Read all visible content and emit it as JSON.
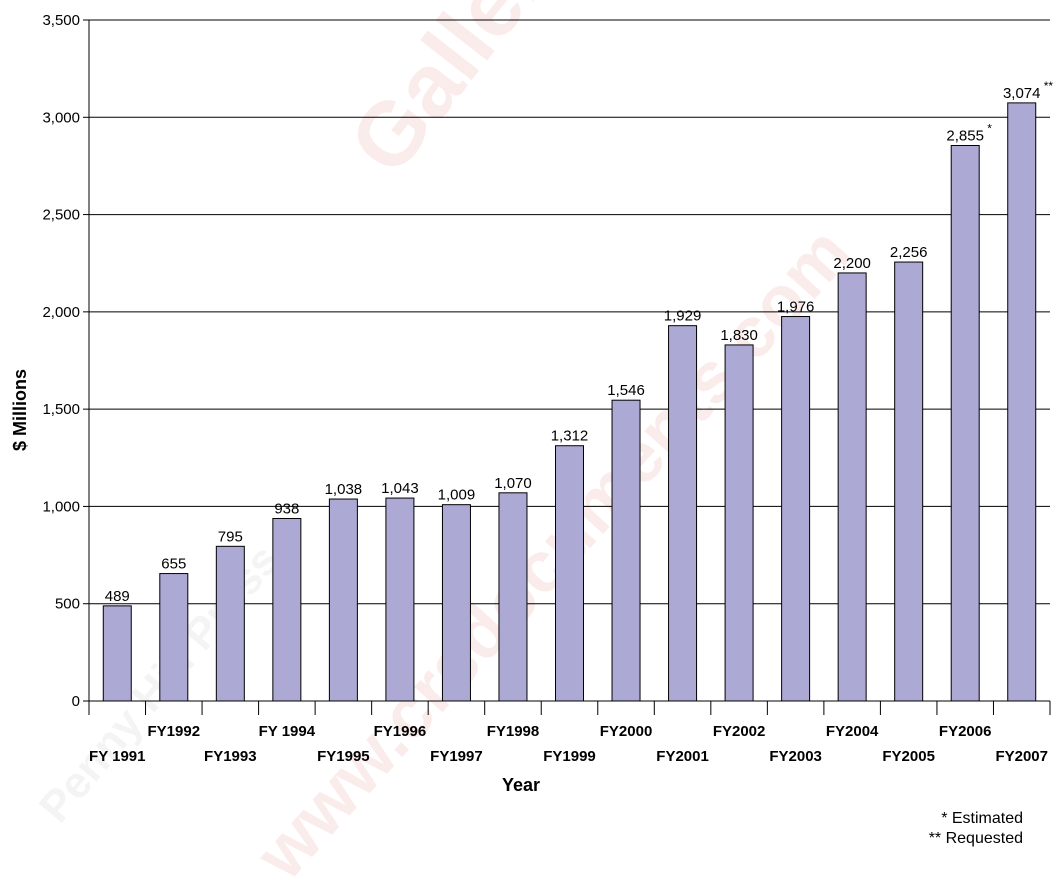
{
  "chart_data": {
    "type": "bar",
    "categories": [
      "FY 1991",
      "FY1992",
      "FY1993",
      "FY 1994",
      "FY1995",
      "FY1996",
      "FY1997",
      "FY1998",
      "FY1999",
      "FY2000",
      "FY2001",
      "FY2002",
      "FY2003",
      "FY2004",
      "FY2005",
      "FY2006",
      "FY2007"
    ],
    "values": [
      489,
      655,
      795,
      938,
      1038,
      1043,
      1009,
      1070,
      1312,
      1546,
      1929,
      1830,
      1976,
      2200,
      2256,
      2855,
      3074
    ],
    "value_labels": [
      "489",
      "655",
      "795",
      "938",
      "1,038",
      "1,043",
      "1,009",
      "1,070",
      "1,312",
      "1,546",
      "1,929",
      "1,830",
      "1,976",
      "2,200",
      "2,256",
      "2,855",
      "3,074"
    ],
    "value_marks": [
      "",
      "",
      "",
      "",
      "",
      "",
      "",
      "",
      "",
      "",
      "",
      "",
      "",
      "",
      "",
      "*",
      "**"
    ],
    "xlabel": "Year",
    "ylabel": "$ Millions",
    "ylim": [
      0,
      3500
    ],
    "yticks": [
      0,
      500,
      1000,
      1500,
      2000,
      2500,
      3000,
      3500
    ],
    "ytick_labels": [
      "0",
      "500",
      "1,000",
      "1,500",
      "2,000",
      "2,500",
      "3,000",
      "3,500"
    ],
    "grid": true,
    "bar_color": "#ADA9D5",
    "bar_edge_color": "#000000"
  },
  "notes": {
    "estimated": "* Estimated",
    "requested": "** Requested"
  },
  "watermarks": {
    "main": "GalleryWatch.com",
    "secondary": "www.crsdocuments.com",
    "press": "Penny Hill Press"
  }
}
